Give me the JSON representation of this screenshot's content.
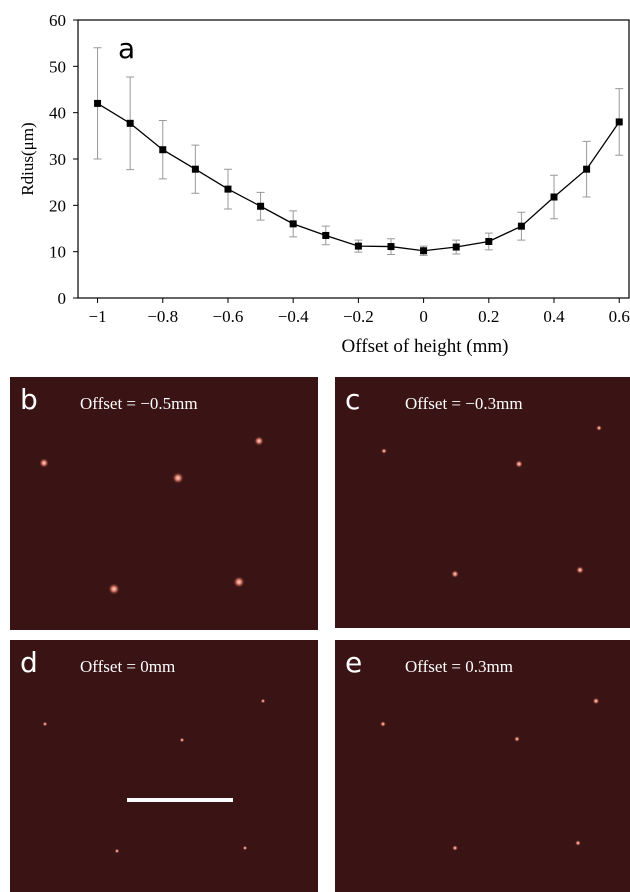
{
  "chart_data": {
    "type": "line",
    "panel_label": "a",
    "x_label": "Offset of height (mm)",
    "y_label": "Rdius(μm)",
    "x": [
      -1,
      -0.9,
      -0.8,
      -0.7,
      -0.6,
      -0.5,
      -0.4,
      -0.3,
      -0.2,
      -0.1,
      0,
      0.1,
      0.2,
      0.3,
      0.4,
      0.5,
      0.6
    ],
    "values": [
      42,
      37.7,
      32,
      27.8,
      23.5,
      19.8,
      16,
      13.5,
      11.2,
      11.1,
      10.2,
      11,
      12.2,
      15.5,
      21.8,
      27.8,
      38
    ],
    "errors": [
      12,
      10,
      6.3,
      5.2,
      4.3,
      3,
      2.8,
      2,
      1.3,
      1.7,
      1,
      1.5,
      1.8,
      3,
      4.7,
      6,
      7.2
    ],
    "color": "#000000",
    "error_color": "#999999",
    "xlim": [
      -1.06,
      0.63
    ],
    "ylim": [
      0,
      60
    ],
    "xticks": [
      {
        "value": -1,
        "label": "−1"
      },
      {
        "value": -0.8,
        "label": "−0.8"
      },
      {
        "value": -0.6,
        "label": "−0.6"
      },
      {
        "value": -0.4,
        "label": "−0.4"
      },
      {
        "value": -0.2,
        "label": "−0.2"
      },
      0,
      0.2,
      0.4,
      0.6
    ],
    "yticks": [
      0,
      10,
      20,
      30,
      40,
      50,
      60
    ]
  },
  "panels": [
    {
      "label": "b",
      "caption": "Offset = −0.5mm"
    },
    {
      "label": "c",
      "caption": "Offset = −0.3mm"
    },
    {
      "label": "d",
      "caption": "Offset = 0mm"
    },
    {
      "label": "e",
      "caption": "Offset = 0.3mm"
    }
  ]
}
